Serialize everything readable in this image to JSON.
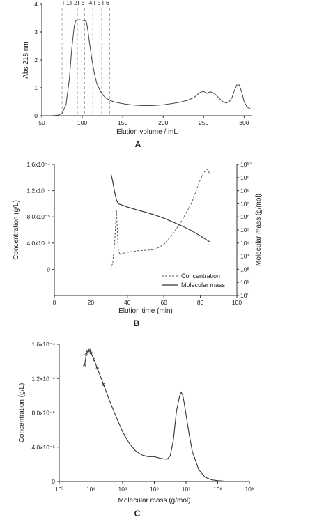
{
  "chart_data": [
    {
      "type": "line",
      "panel_label": "A",
      "xlabel": "Elution volume / mL",
      "ylabel": "Abs 218 nm",
      "xlim": [
        60,
        310
      ],
      "ylim": [
        0,
        4
      ],
      "xticks": [
        "50",
        "100",
        "150",
        "200",
        "250",
        "300"
      ],
      "xtick_values": [
        50,
        100,
        150,
        200,
        250,
        300
      ],
      "yticks": [
        "0",
        "1",
        "2",
        "3",
        "4"
      ],
      "ytick_values": [
        0,
        1,
        2,
        3,
        4
      ],
      "fractions": [
        {
          "label": "F1",
          "x": 75
        },
        {
          "label": "F2",
          "x": 85
        },
        {
          "label": "F3",
          "x": 94
        },
        {
          "label": "F4",
          "x": 103
        },
        {
          "label": "F5",
          "x": 113
        },
        {
          "label": "F6",
          "x": 124
        }
      ],
      "fraction_boundaries": [
        75,
        85,
        94,
        103,
        113,
        124,
        134
      ],
      "series": [
        {
          "x": [
            62,
            70,
            75,
            80,
            84,
            87,
            90,
            92,
            94,
            97,
            100,
            103,
            105,
            107,
            109,
            112,
            115,
            118,
            122,
            126,
            130,
            135,
            140,
            150,
            160,
            170,
            180,
            190,
            200,
            210,
            220,
            230,
            238,
            242,
            246,
            250,
            254,
            258,
            262,
            266,
            270,
            274,
            278,
            282,
            285,
            288,
            291,
            294,
            297,
            300,
            304,
            308
          ],
          "y": [
            0.0,
            0.02,
            0.08,
            0.4,
            1.3,
            2.4,
            3.2,
            3.42,
            3.44,
            3.45,
            3.43,
            3.42,
            3.38,
            3.05,
            2.6,
            2.0,
            1.5,
            1.15,
            0.9,
            0.72,
            0.62,
            0.54,
            0.49,
            0.43,
            0.39,
            0.37,
            0.36,
            0.37,
            0.39,
            0.43,
            0.48,
            0.55,
            0.65,
            0.75,
            0.84,
            0.87,
            0.8,
            0.86,
            0.82,
            0.72,
            0.6,
            0.5,
            0.45,
            0.52,
            0.65,
            0.9,
            1.1,
            1.1,
            0.85,
            0.5,
            0.3,
            0.24
          ]
        }
      ]
    },
    {
      "type": "line",
      "panel_label": "B",
      "xlabel": "Elution time (min)",
      "ylabel": "Concentration (g/L)",
      "y2label": "Molecular mass (g/mol)",
      "xlim": [
        0,
        100
      ],
      "ylim": [
        -4e-05,
        0.00016
      ],
      "y2lim_log10": [
        0,
        10
      ],
      "xticks": [
        "0",
        "20",
        "40",
        "60",
        "80",
        "100"
      ],
      "xtick_values": [
        0,
        20,
        40,
        60,
        80,
        100
      ],
      "yticks": [
        "0",
        "4.0x10⁻⁵",
        "8.0x10⁻⁵",
        "1.2x10⁻⁴",
        "1.6x10⁻⁴"
      ],
      "ytick_values": [
        0,
        4e-05,
        8e-05,
        0.00012,
        0.00016
      ],
      "y2ticks": [
        "10⁰",
        "10¹",
        "10²",
        "10³",
        "10⁴",
        "10⁵",
        "10⁶",
        "10⁷",
        "10⁸",
        "10⁹",
        "10¹⁰"
      ],
      "y2tick_values_log10": [
        0,
        1,
        2,
        3,
        4,
        5,
        6,
        7,
        8,
        9,
        10
      ],
      "legend_position": "bottom-right",
      "series": [
        {
          "name": "Concentration",
          "style": "dashed",
          "x": [
            31,
            32,
            33,
            34,
            35,
            36,
            37,
            40,
            45,
            50,
            55,
            60,
            65,
            70,
            75,
            78,
            80,
            82,
            84,
            85
          ],
          "y": [
            0.0,
            1e-05,
            4e-05,
            9e-05,
            3e-05,
            2.2e-05,
            2.4e-05,
            2.6e-05,
            2.8e-05,
            2.9e-05,
            3e-05,
            3.8e-05,
            5.4e-05,
            7.5e-05,
            0.0001,
            0.000122,
            0.000137,
            0.000148,
            0.000153,
            0.000146
          ]
        },
        {
          "name": "Molecular mass",
          "style": "solid",
          "x": [
            31,
            32,
            33,
            34,
            35,
            36,
            38,
            40,
            45,
            50,
            55,
            60,
            65,
            70,
            75,
            80,
            85
          ],
          "y_log10": [
            9.3,
            8.7,
            7.9,
            7.3,
            7.0,
            6.95,
            6.85,
            6.75,
            6.55,
            6.35,
            6.15,
            5.9,
            5.6,
            5.3,
            4.95,
            4.55,
            4.1
          ]
        }
      ]
    },
    {
      "type": "line",
      "panel_label": "C",
      "xlabel": "Molecular mass (g/mol)",
      "ylabel": "Concentration (g/L)",
      "xscale": "log",
      "xlim_log10": [
        3,
        9
      ],
      "ylim": [
        0,
        0.00016
      ],
      "xticks": [
        "10³",
        "10⁴",
        "10⁵",
        "10⁶",
        "10⁷",
        "10⁸",
        "10⁹"
      ],
      "xtick_values_log10": [
        3,
        4,
        5,
        6,
        7,
        8,
        9
      ],
      "yticks": [
        "0",
        "4.0x10⁻⁵",
        "8.0x10⁻⁵",
        "1.2x10⁻⁴",
        "1.6x10⁻⁴"
      ],
      "ytick_values": [
        0,
        4e-05,
        8e-05,
        0.00012,
        0.00016
      ],
      "series": [
        {
          "x_log10": [
            3.8,
            3.85,
            3.9,
            3.95,
            4.0,
            4.1,
            4.2,
            4.4,
            4.6,
            4.8,
            5.0,
            5.2,
            5.4,
            5.6,
            5.8,
            6.0,
            6.2,
            6.4,
            6.5,
            6.6,
            6.7,
            6.8,
            6.85,
            6.9,
            6.95,
            7.0,
            7.1,
            7.2,
            7.4,
            7.6,
            7.8,
            8.0,
            8.2,
            8.4
          ],
          "y": [
            0.000135,
            0.000148,
            0.000152,
            0.000153,
            0.00015,
            0.000142,
            0.000132,
            0.000113,
            9.3e-05,
            7.5e-05,
            5.8e-05,
            4.5e-05,
            3.6e-05,
            3.1e-05,
            2.9e-05,
            2.9e-05,
            2.7e-05,
            2.6e-05,
            3e-05,
            4.8e-05,
            8.2e-05,
            0.0001,
            0.000104,
            0.0001,
            9e-05,
            7.8e-05,
            5.5e-05,
            3.5e-05,
            1.4e-05,
            5e-06,
            2e-06,
            1e-06,
            5e-07,
            3e-07
          ]
        }
      ]
    }
  ]
}
